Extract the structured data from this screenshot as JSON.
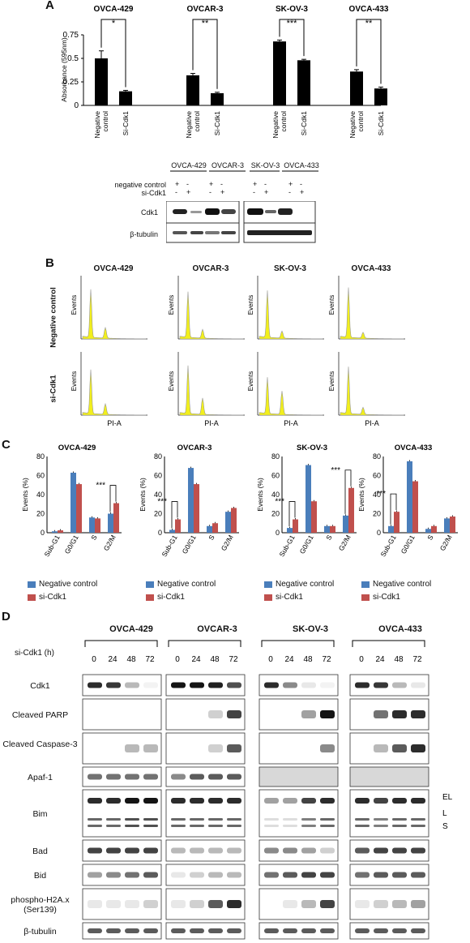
{
  "panels": {
    "A": "A",
    "B": "B",
    "C": "C",
    "D": "D"
  },
  "cell_lines": [
    "OVCA-429",
    "OVCAR-3",
    "SK-OV-3",
    "OVCA-433"
  ],
  "colors": {
    "blue": "#4a7ebb",
    "red": "#c0504d",
    "bar": "#000000",
    "flow": "#f2ef1c"
  },
  "panelA": {
    "ylabel": "Absorbance (595nm)",
    "yticks": [
      "0",
      "0.25",
      "0.5",
      "0.75"
    ],
    "xlabels": [
      "Negative control",
      "Si-Cdk1"
    ],
    "significance": [
      "*",
      "**",
      "***",
      "**"
    ]
  },
  "blotA": {
    "group1": "OVCA-429",
    "group2": "OVCAR-3",
    "group3": "SK-OV-3",
    "group4": "OVCA-433",
    "row1_label": "negative control",
    "row2_label": "si-Cdk1",
    "row1_signs": [
      "+",
      "-",
      "+",
      "-",
      "+",
      "-",
      "+",
      "-"
    ],
    "row2_signs": [
      "-",
      "+",
      "-",
      "+",
      "-",
      "+",
      "-",
      "+"
    ],
    "lane_labels": [
      "Cdk1",
      "β-tubulin"
    ]
  },
  "panelB": {
    "row_labels": [
      "Negative control",
      "si-Cdk1"
    ],
    "ylabel": "Events",
    "xlabel": "PI-A"
  },
  "panelC": {
    "ylabel": "Events (%)",
    "categories": [
      "Sub-G1",
      "G0/G1",
      "S",
      "G2/M"
    ],
    "legend_neg": "Negative control",
    "legend_si": "si-Cdk1",
    "significance": "***"
  },
  "panelD": {
    "time_label": "si-Cdk1 (h)",
    "times": [
      "0",
      "24",
      "48",
      "72"
    ],
    "rows": [
      "Cdk1",
      "Cleaved PARP",
      "Cleaved Caspase-3",
      "Apaf-1",
      "Bim",
      "Bad",
      "Bid",
      "phospho-H2A.x (Ser139)",
      "β-tubulin"
    ],
    "bim_isoforms": [
      "EL",
      "L",
      "S"
    ]
  },
  "chart_data": [
    {
      "type": "bar",
      "title": "OVCA-429",
      "categories": [
        "Negative control",
        "Si-Cdk1"
      ],
      "values": [
        0.5,
        0.15
      ],
      "errors": [
        0.08,
        0.01
      ],
      "ylabel": "Absorbance (595nm)",
      "ylim": [
        0,
        0.75
      ]
    },
    {
      "type": "bar",
      "title": "OVCAR-3",
      "categories": [
        "Negative control",
        "Si-Cdk1"
      ],
      "values": [
        0.32,
        0.13
      ],
      "errors": [
        0.02,
        0.01
      ],
      "ylim": [
        0,
        0.75
      ]
    },
    {
      "type": "bar",
      "title": "SK-OV-3",
      "categories": [
        "Negative control",
        "Si-Cdk1"
      ],
      "values": [
        0.68,
        0.48
      ],
      "errors": [
        0.015,
        0.01
      ],
      "ylim": [
        0,
        0.75
      ]
    },
    {
      "type": "bar",
      "title": "OVCA-433",
      "categories": [
        "Negative control",
        "Si-Cdk1"
      ],
      "values": [
        0.36,
        0.18
      ],
      "errors": [
        0.02,
        0.015
      ],
      "ylim": [
        0,
        0.75
      ]
    },
    {
      "type": "bar",
      "title": "OVCA-429",
      "categories": [
        "Sub-G1",
        "G0/G1",
        "S",
        "G2/M"
      ],
      "series": [
        {
          "name": "Negative control",
          "values": [
            1.5,
            63,
            16,
            20
          ]
        },
        {
          "name": "si-Cdk1",
          "values": [
            2.5,
            51,
            15,
            31
          ]
        }
      ],
      "ylabel": "Events (%)",
      "ylim": [
        0,
        80
      ]
    },
    {
      "type": "bar",
      "title": "OVCAR-3",
      "categories": [
        "Sub-G1",
        "G0/G1",
        "S",
        "G2/M"
      ],
      "series": [
        {
          "name": "Negative control",
          "values": [
            3,
            68,
            7,
            22
          ]
        },
        {
          "name": "si-Cdk1",
          "values": [
            14,
            51,
            10,
            26
          ]
        }
      ],
      "ylim": [
        0,
        80
      ]
    },
    {
      "type": "bar",
      "title": "SK-OV-3",
      "categories": [
        "Sub-G1",
        "G0/G1",
        "S",
        "G2/M"
      ],
      "series": [
        {
          "name": "Negative control",
          "values": [
            5,
            71,
            7,
            18
          ]
        },
        {
          "name": "si-Cdk1",
          "values": [
            14,
            33,
            7,
            47
          ]
        }
      ],
      "ylim": [
        0,
        80
      ]
    },
    {
      "type": "bar",
      "title": "OVCA-433",
      "categories": [
        "Sub-G1",
        "G0/G1",
        "S",
        "G2/M"
      ],
      "series": [
        {
          "name": "Negative control",
          "values": [
            7,
            75,
            4,
            15
          ]
        },
        {
          "name": "si-Cdk1",
          "values": [
            22,
            54,
            7,
            17
          ]
        }
      ],
      "ylim": [
        0,
        80
      ]
    }
  ]
}
